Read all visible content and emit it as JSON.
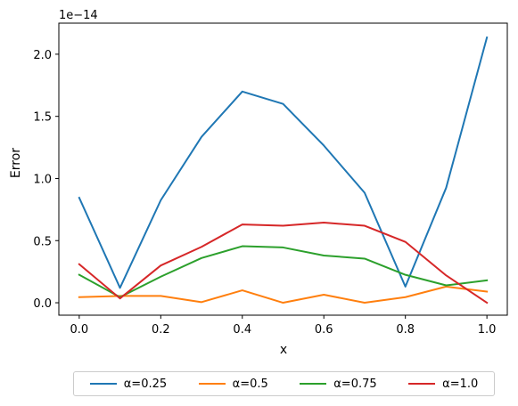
{
  "chart_data": {
    "type": "line",
    "xlabel": "x",
    "ylabel": "Error",
    "y_offset_text": "1e−14",
    "xlim": [
      -0.05,
      1.05
    ],
    "ylim": [
      -0.1,
      2.25
    ],
    "x_ticks": [
      0.0,
      0.2,
      0.4,
      0.6,
      0.8,
      1.0
    ],
    "x_tick_labels": [
      "0.0",
      "0.2",
      "0.4",
      "0.6",
      "0.8",
      "1.0"
    ],
    "y_ticks": [
      0.0,
      0.5,
      1.0,
      1.5,
      2.0
    ],
    "y_tick_labels": [
      "0.0",
      "0.5",
      "1.0",
      "1.5",
      "2.0"
    ],
    "x": [
      0.0,
      0.1,
      0.2,
      0.3,
      0.4,
      0.5,
      0.6,
      0.7,
      0.8,
      0.9,
      1.0
    ],
    "grid": false,
    "legend_position": "bottom-center",
    "series": [
      {
        "name": "α=0.25",
        "color": "#1f77b4",
        "values": [
          0.845,
          0.12,
          0.825,
          1.335,
          1.7,
          1.6,
          1.265,
          0.885,
          0.13,
          0.925,
          2.135
        ]
      },
      {
        "name": "α=0.5",
        "color": "#ff7f0e",
        "values": [
          0.045,
          0.055,
          0.055,
          0.005,
          0.1,
          0.0,
          0.065,
          0.0,
          0.045,
          0.13,
          0.09
        ]
      },
      {
        "name": "α=0.75",
        "color": "#2ca02c",
        "values": [
          0.225,
          0.045,
          0.21,
          0.36,
          0.455,
          0.445,
          0.38,
          0.355,
          0.225,
          0.14,
          0.18
        ]
      },
      {
        "name": "α=1.0",
        "color": "#d62728",
        "values": [
          0.31,
          0.035,
          0.3,
          0.45,
          0.63,
          0.62,
          0.645,
          0.62,
          0.49,
          0.22,
          0.0
        ]
      }
    ]
  }
}
